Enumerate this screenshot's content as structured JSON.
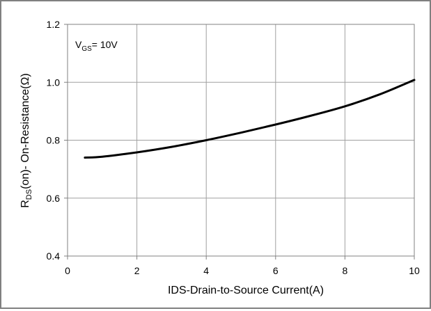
{
  "chart_data": {
    "type": "line",
    "annotation": {
      "main": "V",
      "sub": "GS",
      "rest": "= 10V"
    },
    "xlabel": "IDS-Drain-to-Source  Current(A)",
    "ylabel": {
      "pre": "R",
      "sub": "DS",
      "post": "(on)- On-Resistance(Ω)"
    },
    "xlim": [
      0,
      10
    ],
    "ylim": [
      0.4,
      1.2
    ],
    "x_ticks": [
      0,
      2,
      4,
      6,
      8,
      10
    ],
    "y_ticks": [
      0.4,
      0.6,
      0.8,
      1.0,
      1.2
    ],
    "x_tick_labels": [
      "0",
      "2",
      "4",
      "6",
      "8",
      "10"
    ],
    "y_tick_labels": [
      "0.4",
      "0.6",
      "0.8",
      "1.0",
      "1.2"
    ],
    "grid": true,
    "series": [
      {
        "x": [
          0.5,
          1,
          2,
          3,
          4,
          5,
          6,
          7,
          8,
          9,
          10
        ],
        "y": [
          0.74,
          0.743,
          0.758,
          0.777,
          0.8,
          0.826,
          0.854,
          0.884,
          0.917,
          0.958,
          1.008
        ]
      }
    ],
    "colors": {
      "line": "#000000",
      "grid": "#a0a0a0",
      "axis": "#808080"
    }
  }
}
